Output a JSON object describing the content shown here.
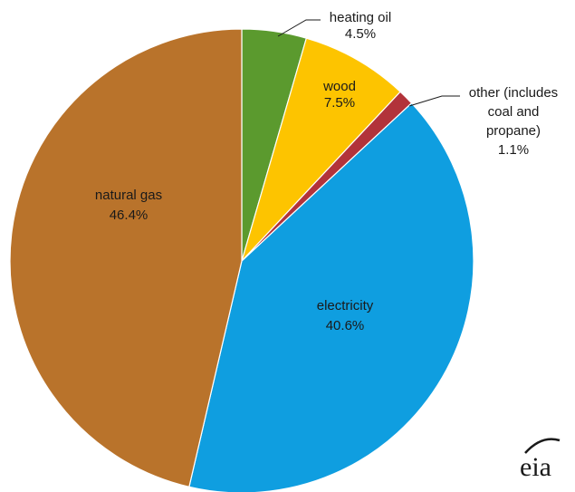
{
  "chart_data": {
    "type": "pie",
    "start_angle_deg": 0,
    "direction": "clockwise",
    "slices": [
      {
        "key": "heating_oil",
        "label_lines": [
          "heating oil",
          "4.5%"
        ],
        "value": 4.5,
        "color": "#5b9a2e",
        "label_style": "leader"
      },
      {
        "key": "wood",
        "label_lines": [
          "wood",
          "7.5%"
        ],
        "value": 7.5,
        "color": "#fdc400",
        "label_style": "inside"
      },
      {
        "key": "other",
        "label_lines": [
          "other (includes",
          "coal and",
          "propane)",
          "1.1%"
        ],
        "value": 1.1,
        "color": "#b2333a",
        "label_style": "leader"
      },
      {
        "key": "electricity",
        "label_lines": [
          "electricity",
          "40.6%"
        ],
        "value": 40.6,
        "color": "#0f9ee0",
        "label_style": "inside"
      },
      {
        "key": "natural_gas",
        "label_lines": [
          "natural gas",
          "46.4%"
        ],
        "value": 46.4,
        "color": "#b9732b",
        "label_style": "inside"
      }
    ]
  },
  "logo": {
    "text": "eia",
    "icon": "eia-logo-icon"
  }
}
